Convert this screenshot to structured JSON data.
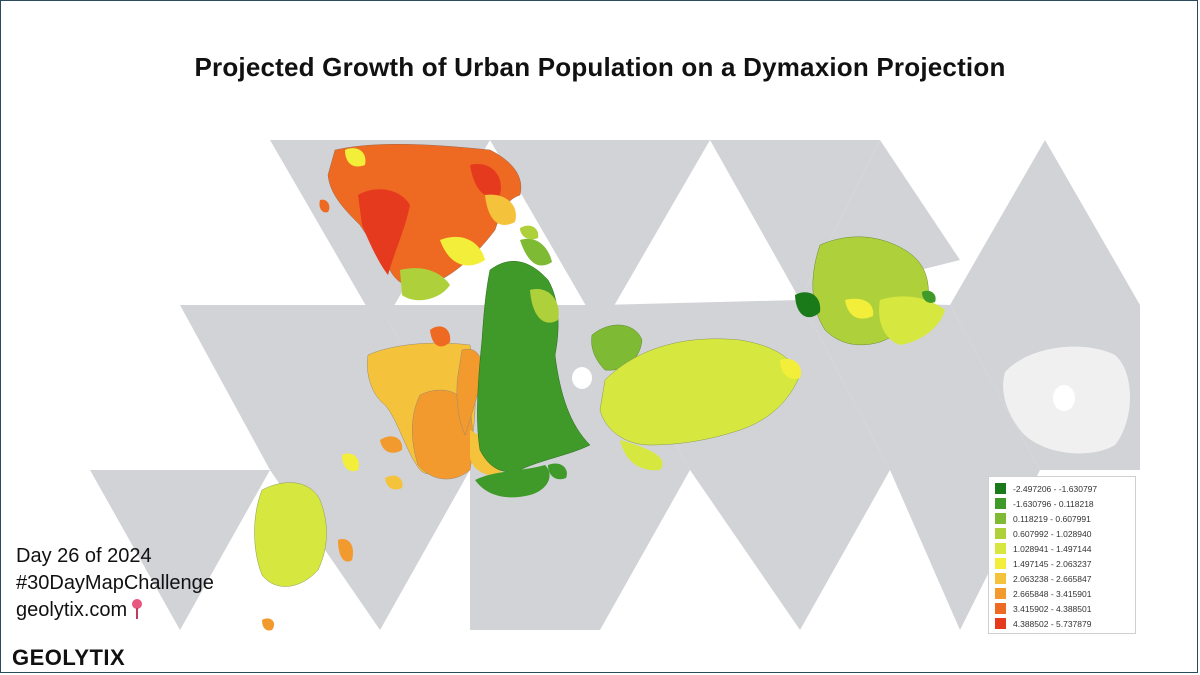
{
  "title": "Projected Growth of Urban Population on a Dymaxion Projection",
  "legend": {
    "classes": [
      {
        "label": "-2.497206 - -1.630797",
        "color": "#1a7a1a"
      },
      {
        "label": "-1.630796 - 0.118218",
        "color": "#3f9a2a"
      },
      {
        "label": "0.118219 - 0.607991",
        "color": "#7fba35"
      },
      {
        "label": "0.607992 - 1.028940",
        "color": "#aed13b"
      },
      {
        "label": "1.028941 - 1.497144",
        "color": "#d6e83f"
      },
      {
        "label": "1.497145 - 2.063237",
        "color": "#f3ee3a"
      },
      {
        "label": "2.063238 - 2.665847",
        "color": "#f5c33b"
      },
      {
        "label": "2.665848 - 3.415901",
        "color": "#f39a2e"
      },
      {
        "label": "3.415902 - 4.388501",
        "color": "#ee6a22"
      },
      {
        "label": "4.388502 - 5.737879",
        "color": "#e63a1f"
      }
    ]
  },
  "caption": {
    "line1": "Day 26 of 2024",
    "line2": "#30DayMapChallenge",
    "line3": "geolytix.com"
  },
  "logo": "GEOLYTIX",
  "colors": {
    "ocean_faces": "#d2d3d7",
    "antarctica": "#f0f0f0",
    "border": "#2b4a5e"
  }
}
